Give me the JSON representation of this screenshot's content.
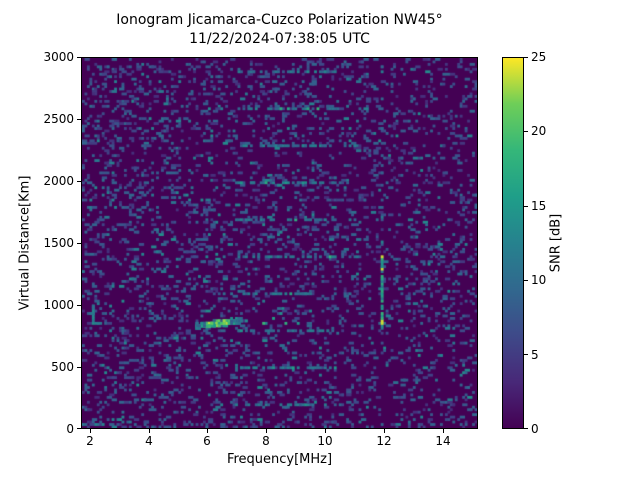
{
  "chart_data": {
    "type": "heatmap",
    "title": "Ionogram Jicamarca-Cuzco Polarization NW45°",
    "subtitle": "11/22/2024-07:38:05 UTC",
    "xlabel": "Frequency[MHz]",
    "ylabel": "Virtual Distance[Km]",
    "colorbar_label": "SNR [dB]",
    "xlim": [
      1.7,
      15.2
    ],
    "ylim": [
      0,
      3000
    ],
    "xticks": [
      2,
      4,
      6,
      8,
      10,
      12,
      14
    ],
    "yticks": [
      0,
      500,
      1000,
      1500,
      2000,
      2500,
      3000
    ],
    "colorbar_ticks": [
      0,
      5,
      10,
      15,
      20,
      25
    ],
    "colorbar_range": [
      0,
      25
    ],
    "colormap": "viridis",
    "palette": [
      [
        0,
        "#440154"
      ],
      [
        3.1,
        "#482878"
      ],
      [
        6.3,
        "#3e4a89"
      ],
      [
        9.4,
        "#31688e"
      ],
      [
        12.5,
        "#26828e"
      ],
      [
        15.6,
        "#1f9e89"
      ],
      [
        18.8,
        "#35b779"
      ],
      [
        21.9,
        "#6ece58"
      ],
      [
        25,
        "#fde725"
      ]
    ],
    "seed": 20241122,
    "grid_cols": 160,
    "grid_rows": 150,
    "features": {
      "noise": {
        "density": 0.14,
        "snr_range": [
          3.5,
          9.5
        ],
        "bright_fraction": 0.12
      },
      "echo_trace": {
        "freq_range": [
          5.55,
          7.1
        ],
        "base_altitude_km": 835,
        "slope_km_per_mhz": 32,
        "altitude_spread_km": 20,
        "peak_snr": 25,
        "points": 320
      },
      "scatter_dots": [
        [
          7.9,
          862,
          19
        ],
        [
          8.65,
          868,
          18
        ],
        [
          8.2,
          905,
          16
        ],
        [
          9.0,
          858,
          15
        ],
        [
          8.45,
          940,
          14
        ]
      ],
      "vertical_rfi": {
        "freq": 11.95,
        "altitude_range_km": [
          800,
          1410
        ],
        "faint_extension_km": [
          1410,
          2950
        ],
        "peak_snr": 24
      },
      "edge_echo": {
        "freq": 2.0,
        "altitude_range_km": [
          840,
          1010
        ],
        "snr": 12
      },
      "horizontal_stripes": {
        "altitudes_km": [
          200,
          500,
          800,
          1100,
          1400,
          1700,
          2000,
          2300,
          2600,
          2900
        ],
        "core_freq_range": [
          7.0,
          10.3
        ],
        "full_freq_range": [
          6.4,
          11.2
        ],
        "snr": 11
      }
    }
  }
}
